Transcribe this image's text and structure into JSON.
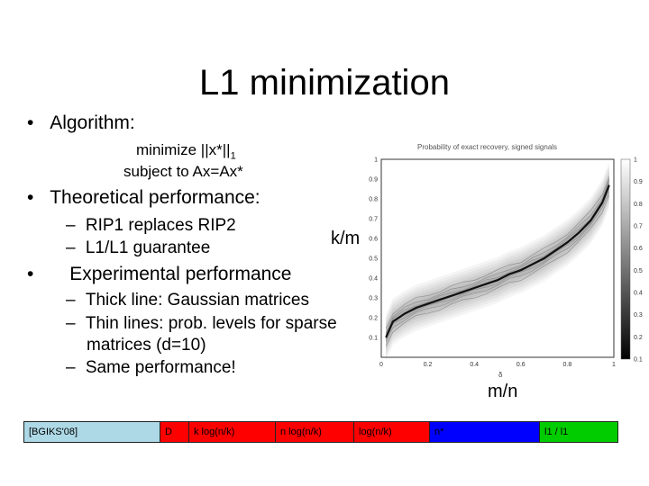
{
  "slide": {
    "title": "L1 minimization",
    "bullets": {
      "algorithm": "Algorithm:",
      "minimize_prefix": "minimize ||x*||",
      "minimize_sub": "1",
      "subject_to": "subject to Ax=Ax*",
      "theoretical": "Theoretical performance:",
      "rip": "RIP1 replaces RIP2",
      "l1l1": "L1/L1 guarantee",
      "experimental": "Experimental performance",
      "thick": "Thick line: Gaussian matrices",
      "thin_1": "Thin lines: prob. levels for sparse",
      "thin_2": "matrices (d=10)",
      "same": "Same performance!"
    },
    "bullet_glyphs": {
      "dot": "•",
      "dash": "–"
    }
  },
  "figure": {
    "ylabel": "k/m",
    "xlabel": "m/n",
    "x_ticks": [
      "0",
      "0.2",
      "0.4",
      "0.6",
      "0.8",
      "1"
    ],
    "y_ticks": [
      "1",
      "0.9",
      "0.8",
      "0.7",
      "0.6",
      "0.5",
      "0.4",
      "0.3",
      "0.2",
      "0.1"
    ],
    "colorbar_ticks": [
      "1",
      "0.9",
      "0.8",
      "0.7",
      "0.6",
      "0.5",
      "0.4",
      "0.3",
      "0.2",
      "0.1"
    ],
    "plot_title": "Probability of exact recovery, signed signals",
    "delta_label": "δ"
  },
  "chart_data": {
    "type": "line",
    "title": "Probability of exact recovery, signed signals",
    "xlabel": "m/n",
    "ylabel": "k/m",
    "xlim": [
      0,
      1
    ],
    "ylim": [
      0,
      1
    ],
    "series": [
      {
        "x": [
          0.02,
          0.05,
          0.1,
          0.15,
          0.2,
          0.25,
          0.3,
          0.35,
          0.4,
          0.45,
          0.5,
          0.55,
          0.6,
          0.65,
          0.7,
          0.75,
          0.8,
          0.85,
          0.9,
          0.95,
          0.98
        ],
        "y": [
          0.1,
          0.18,
          0.22,
          0.25,
          0.27,
          0.29,
          0.31,
          0.33,
          0.35,
          0.37,
          0.39,
          0.42,
          0.44,
          0.47,
          0.5,
          0.54,
          0.58,
          0.63,
          0.69,
          0.78,
          0.87
        ]
      }
    ]
  },
  "bottom_bar": {
    "segments": [
      {
        "label": "[BGIKS'08]",
        "color": "#add8e6"
      },
      {
        "label": "D",
        "color": "#ff0000"
      },
      {
        "label": "k log(n/k)",
        "color": "#ff0000"
      },
      {
        "label": "n log(n/k)",
        "color": "#ff0000"
      },
      {
        "label": "log(n/k)",
        "color": "#ff0000"
      },
      {
        "label": "n*",
        "color": "#0000ff"
      },
      {
        "label": "l1 / l1",
        "color": "#00cc00"
      }
    ]
  }
}
